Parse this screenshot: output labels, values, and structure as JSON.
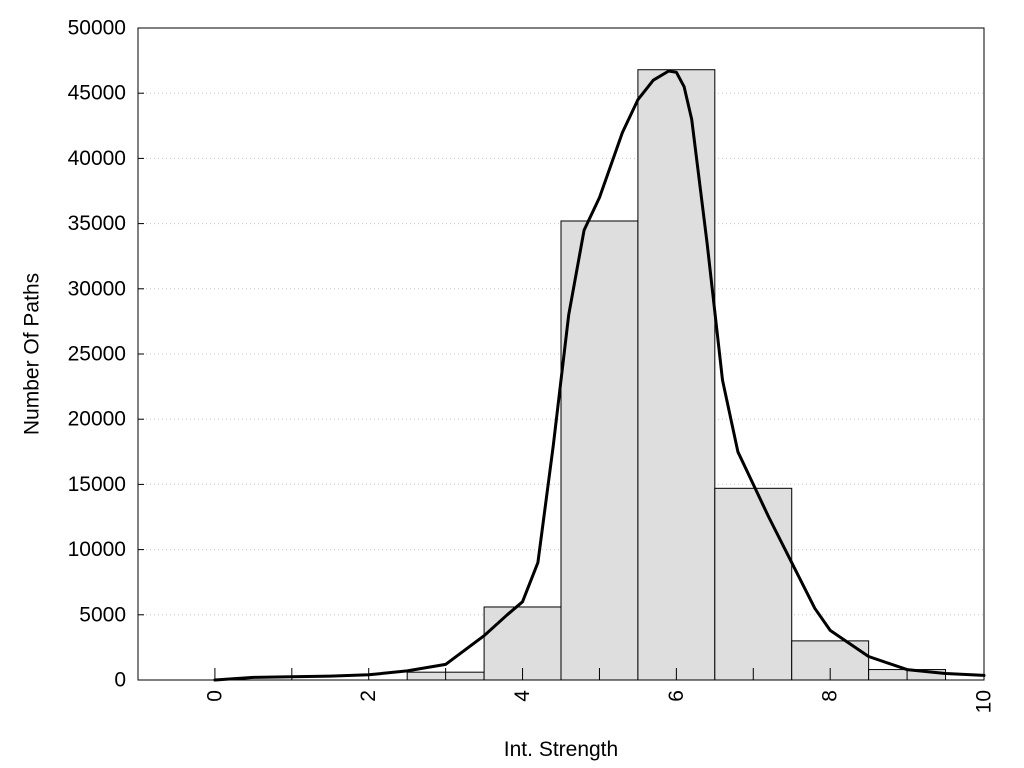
{
  "chart_data": {
    "type": "bar",
    "title": "",
    "xlabel": "Int. Strength",
    "ylabel": "Number Of Paths",
    "xlim": [
      -1,
      10
    ],
    "ylim": [
      0,
      50000
    ],
    "x_ticks": [
      "0",
      "2",
      "4",
      "6",
      "8",
      "10"
    ],
    "y_ticks": [
      "0",
      "5000",
      "10000",
      "15000",
      "20000",
      "25000",
      "30000",
      "35000",
      "40000",
      "45000",
      "50000"
    ],
    "grid": "horizontal dotted",
    "bins": [
      {
        "center": 0,
        "value": 0
      },
      {
        "center": 1,
        "value": 0
      },
      {
        "center": 2,
        "value": 0
      },
      {
        "center": 3,
        "value": 600
      },
      {
        "center": 4,
        "value": 5600
      },
      {
        "center": 5,
        "value": 35200
      },
      {
        "center": 6,
        "value": 46800
      },
      {
        "center": 7,
        "value": 14700
      },
      {
        "center": 8,
        "value": 3000
      },
      {
        "center": 9,
        "value": 800
      },
      {
        "center": 10,
        "value": 0
      }
    ],
    "curve": {
      "x": [
        0,
        0.5,
        1,
        1.5,
        2,
        2.5,
        3,
        3.5,
        3.8,
        4,
        4.2,
        4.4,
        4.6,
        4.8,
        5,
        5.3,
        5.5,
        5.7,
        5.9,
        6,
        6.1,
        6.2,
        6.4,
        6.6,
        6.8,
        7,
        7.2,
        7.5,
        7.8,
        8,
        8.5,
        9,
        9.5,
        10
      ],
      "y": [
        0,
        200,
        250,
        300,
        400,
        700,
        1200,
        3400,
        5000,
        6000,
        9000,
        18000,
        28000,
        34500,
        37000,
        42000,
        44500,
        46000,
        46700,
        46600,
        45500,
        43000,
        33500,
        23000,
        17500,
        15000,
        12500,
        9000,
        5500,
        3800,
        1800,
        800,
        500,
        350
      ]
    },
    "colors": {
      "bar_fill": "#dedede",
      "bar_edge": "#000000",
      "curve": "#000000",
      "grid": "#c8c8c8"
    }
  }
}
